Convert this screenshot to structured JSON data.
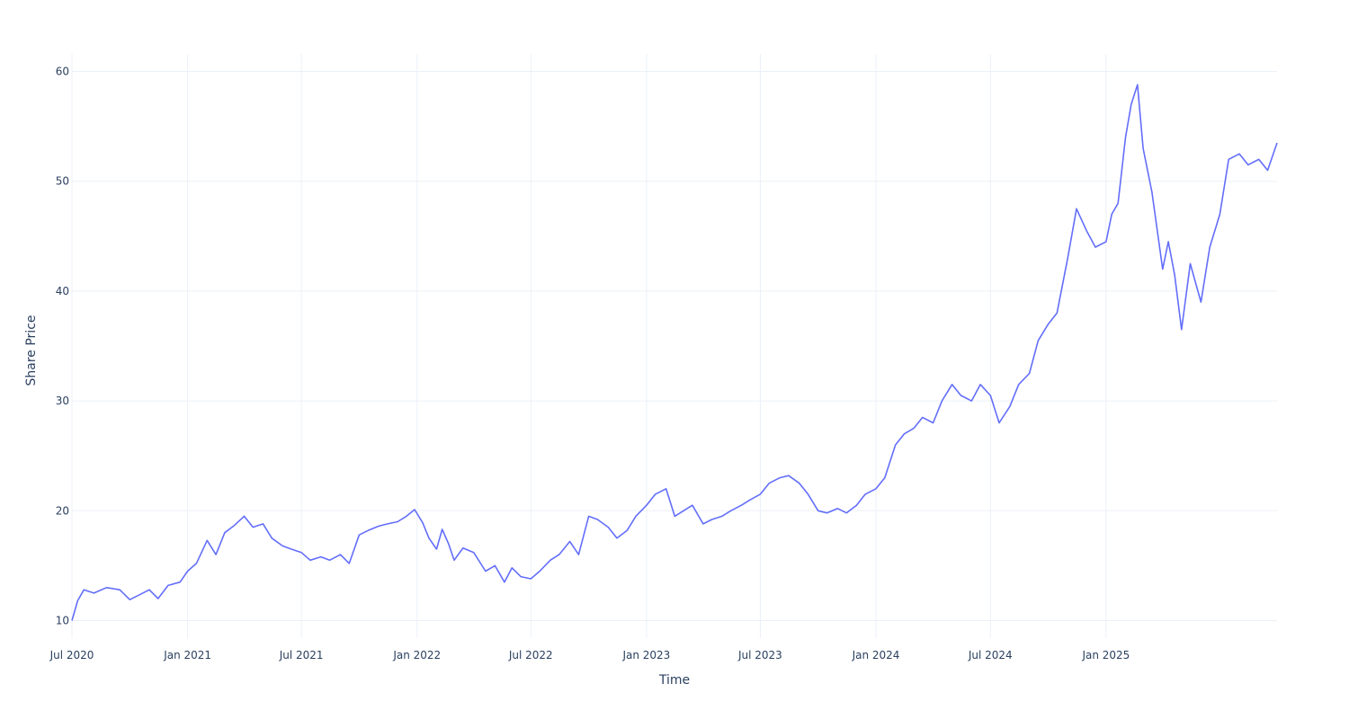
{
  "chart_data": {
    "type": "line",
    "title": "",
    "xlabel": "Time",
    "ylabel": "Share Price",
    "xlim": [
      "2020-07-01",
      "2025-09-30"
    ],
    "ylim": [
      8.4,
      61.6
    ],
    "grid": true,
    "legend": "none",
    "color": "#636efa",
    "x_ticks": [
      {
        "date": "2020-07-01",
        "label": "Jul 2020"
      },
      {
        "date": "2021-01-01",
        "label": "Jan 2021"
      },
      {
        "date": "2021-07-01",
        "label": "Jul 2021"
      },
      {
        "date": "2022-01-01",
        "label": "Jan 2022"
      },
      {
        "date": "2022-07-01",
        "label": "Jul 2022"
      },
      {
        "date": "2023-01-01",
        "label": "Jan 2023"
      },
      {
        "date": "2023-07-01",
        "label": "Jul 2023"
      },
      {
        "date": "2024-01-01",
        "label": "Jan 2024"
      },
      {
        "date": "2024-07-01",
        "label": "Jul 2024"
      },
      {
        "date": "2025-01-01",
        "label": "Jan 2025"
      }
    ],
    "y_ticks": [
      {
        "value": 10,
        "label": "10"
      },
      {
        "value": 20,
        "label": "20"
      },
      {
        "value": 30,
        "label": "30"
      },
      {
        "value": 40,
        "label": "40"
      },
      {
        "value": 50,
        "label": "50"
      },
      {
        "value": 60,
        "label": "60"
      }
    ],
    "series": [
      {
        "x": [
          "2020-07-01",
          "2020-07-10",
          "2020-07-20",
          "2020-08-05",
          "2020-08-25",
          "2020-09-15",
          "2020-10-01",
          "2020-10-15",
          "2020-11-01",
          "2020-11-15",
          "2020-12-01",
          "2020-12-20",
          "2021-01-01",
          "2021-01-15",
          "2021-02-01",
          "2021-02-15",
          "2021-03-01",
          "2021-03-15",
          "2021-04-01",
          "2021-04-15",
          "2021-05-01",
          "2021-05-15",
          "2021-06-01",
          "2021-06-15",
          "2021-07-01",
          "2021-07-15",
          "2021-08-01",
          "2021-08-15",
          "2021-09-01",
          "2021-09-15",
          "2021-10-01",
          "2021-10-15",
          "2021-11-01",
          "2021-11-15",
          "2021-12-01",
          "2021-12-15",
          "2021-12-28",
          "2022-01-10",
          "2022-01-20",
          "2022-02-01",
          "2022-02-10",
          "2022-02-20",
          "2022-03-01",
          "2022-03-15",
          "2022-04-01",
          "2022-04-20",
          "2022-05-05",
          "2022-05-20",
          "2022-06-01",
          "2022-06-15",
          "2022-07-01",
          "2022-07-15",
          "2022-08-01",
          "2022-08-15",
          "2022-09-01",
          "2022-09-15",
          "2022-10-01",
          "2022-10-15",
          "2022-11-01",
          "2022-11-15",
          "2022-12-01",
          "2022-12-15",
          "2023-01-01",
          "2023-01-15",
          "2023-02-01",
          "2023-02-15",
          "2023-03-01",
          "2023-03-15",
          "2023-04-01",
          "2023-04-15",
          "2023-05-01",
          "2023-05-15",
          "2023-06-01",
          "2023-06-15",
          "2023-07-01",
          "2023-07-15",
          "2023-08-01",
          "2023-08-15",
          "2023-09-01",
          "2023-09-15",
          "2023-10-01",
          "2023-10-15",
          "2023-11-01",
          "2023-11-15",
          "2023-12-01",
          "2023-12-15",
          "2024-01-01",
          "2024-01-15",
          "2024-02-01",
          "2024-02-15",
          "2024-03-01",
          "2024-03-15",
          "2024-04-01",
          "2024-04-15",
          "2024-05-01",
          "2024-05-15",
          "2024-06-01",
          "2024-06-15",
          "2024-07-01",
          "2024-07-15",
          "2024-08-01",
          "2024-08-15",
          "2024-09-01",
          "2024-09-15",
          "2024-10-01",
          "2024-10-15",
          "2024-11-01",
          "2024-11-15",
          "2024-12-01",
          "2024-12-15",
          "2025-01-01",
          "2025-01-10",
          "2025-01-20",
          "2025-02-01",
          "2025-02-10",
          "2025-02-20",
          "2025-03-01",
          "2025-03-15",
          "2025-04-01",
          "2025-04-10",
          "2025-04-20",
          "2025-05-01",
          "2025-05-15",
          "2025-06-01",
          "2025-06-15",
          "2025-07-01",
          "2025-07-15",
          "2025-08-01",
          "2025-08-15",
          "2025-09-01",
          "2025-09-15",
          "2025-09-30"
        ],
        "y": [
          10.0,
          11.8,
          12.8,
          12.5,
          13.0,
          12.8,
          11.9,
          12.3,
          12.8,
          12.0,
          13.2,
          13.5,
          14.5,
          15.2,
          17.3,
          16.0,
          18.0,
          18.6,
          19.5,
          18.5,
          18.8,
          17.5,
          16.8,
          16.5,
          16.2,
          15.5,
          15.8,
          15.5,
          16.0,
          15.2,
          17.8,
          18.2,
          18.6,
          18.8,
          19.0,
          19.5,
          20.1,
          18.9,
          17.5,
          16.5,
          18.3,
          17.0,
          15.5,
          16.6,
          16.2,
          14.5,
          15.0,
          13.5,
          14.8,
          14.0,
          13.8,
          14.5,
          15.5,
          16.0,
          17.2,
          16.0,
          19.5,
          19.2,
          18.5,
          17.5,
          18.2,
          19.5,
          20.5,
          21.5,
          22.0,
          19.5,
          20.0,
          20.5,
          18.8,
          19.2,
          19.5,
          20.0,
          20.5,
          21.0,
          21.5,
          22.5,
          23.0,
          23.2,
          22.5,
          21.5,
          20.0,
          19.8,
          20.2,
          19.8,
          20.5,
          21.5,
          22.0,
          23.0,
          26.0,
          27.0,
          27.5,
          28.5,
          28.0,
          30.0,
          31.5,
          30.5,
          30.0,
          31.5,
          30.5,
          28.0,
          29.5,
          31.5,
          32.5,
          35.5,
          37.0,
          38.0,
          43.0,
          47.5,
          45.5,
          44.0,
          44.5,
          47.0,
          48.0,
          54.0,
          57.0,
          58.8,
          53.0,
          49.0,
          42.0,
          44.5,
          41.5,
          36.5,
          42.5,
          39.0,
          44.0,
          47.0,
          52.0,
          52.5,
          51.5,
          52.0,
          51.0,
          53.5
        ]
      }
    ]
  }
}
